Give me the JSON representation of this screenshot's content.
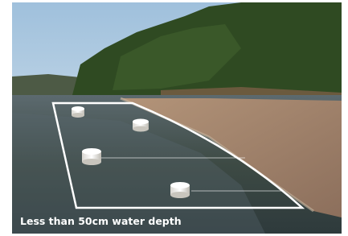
{
  "caption": "Less than 50cm water depth"
}
